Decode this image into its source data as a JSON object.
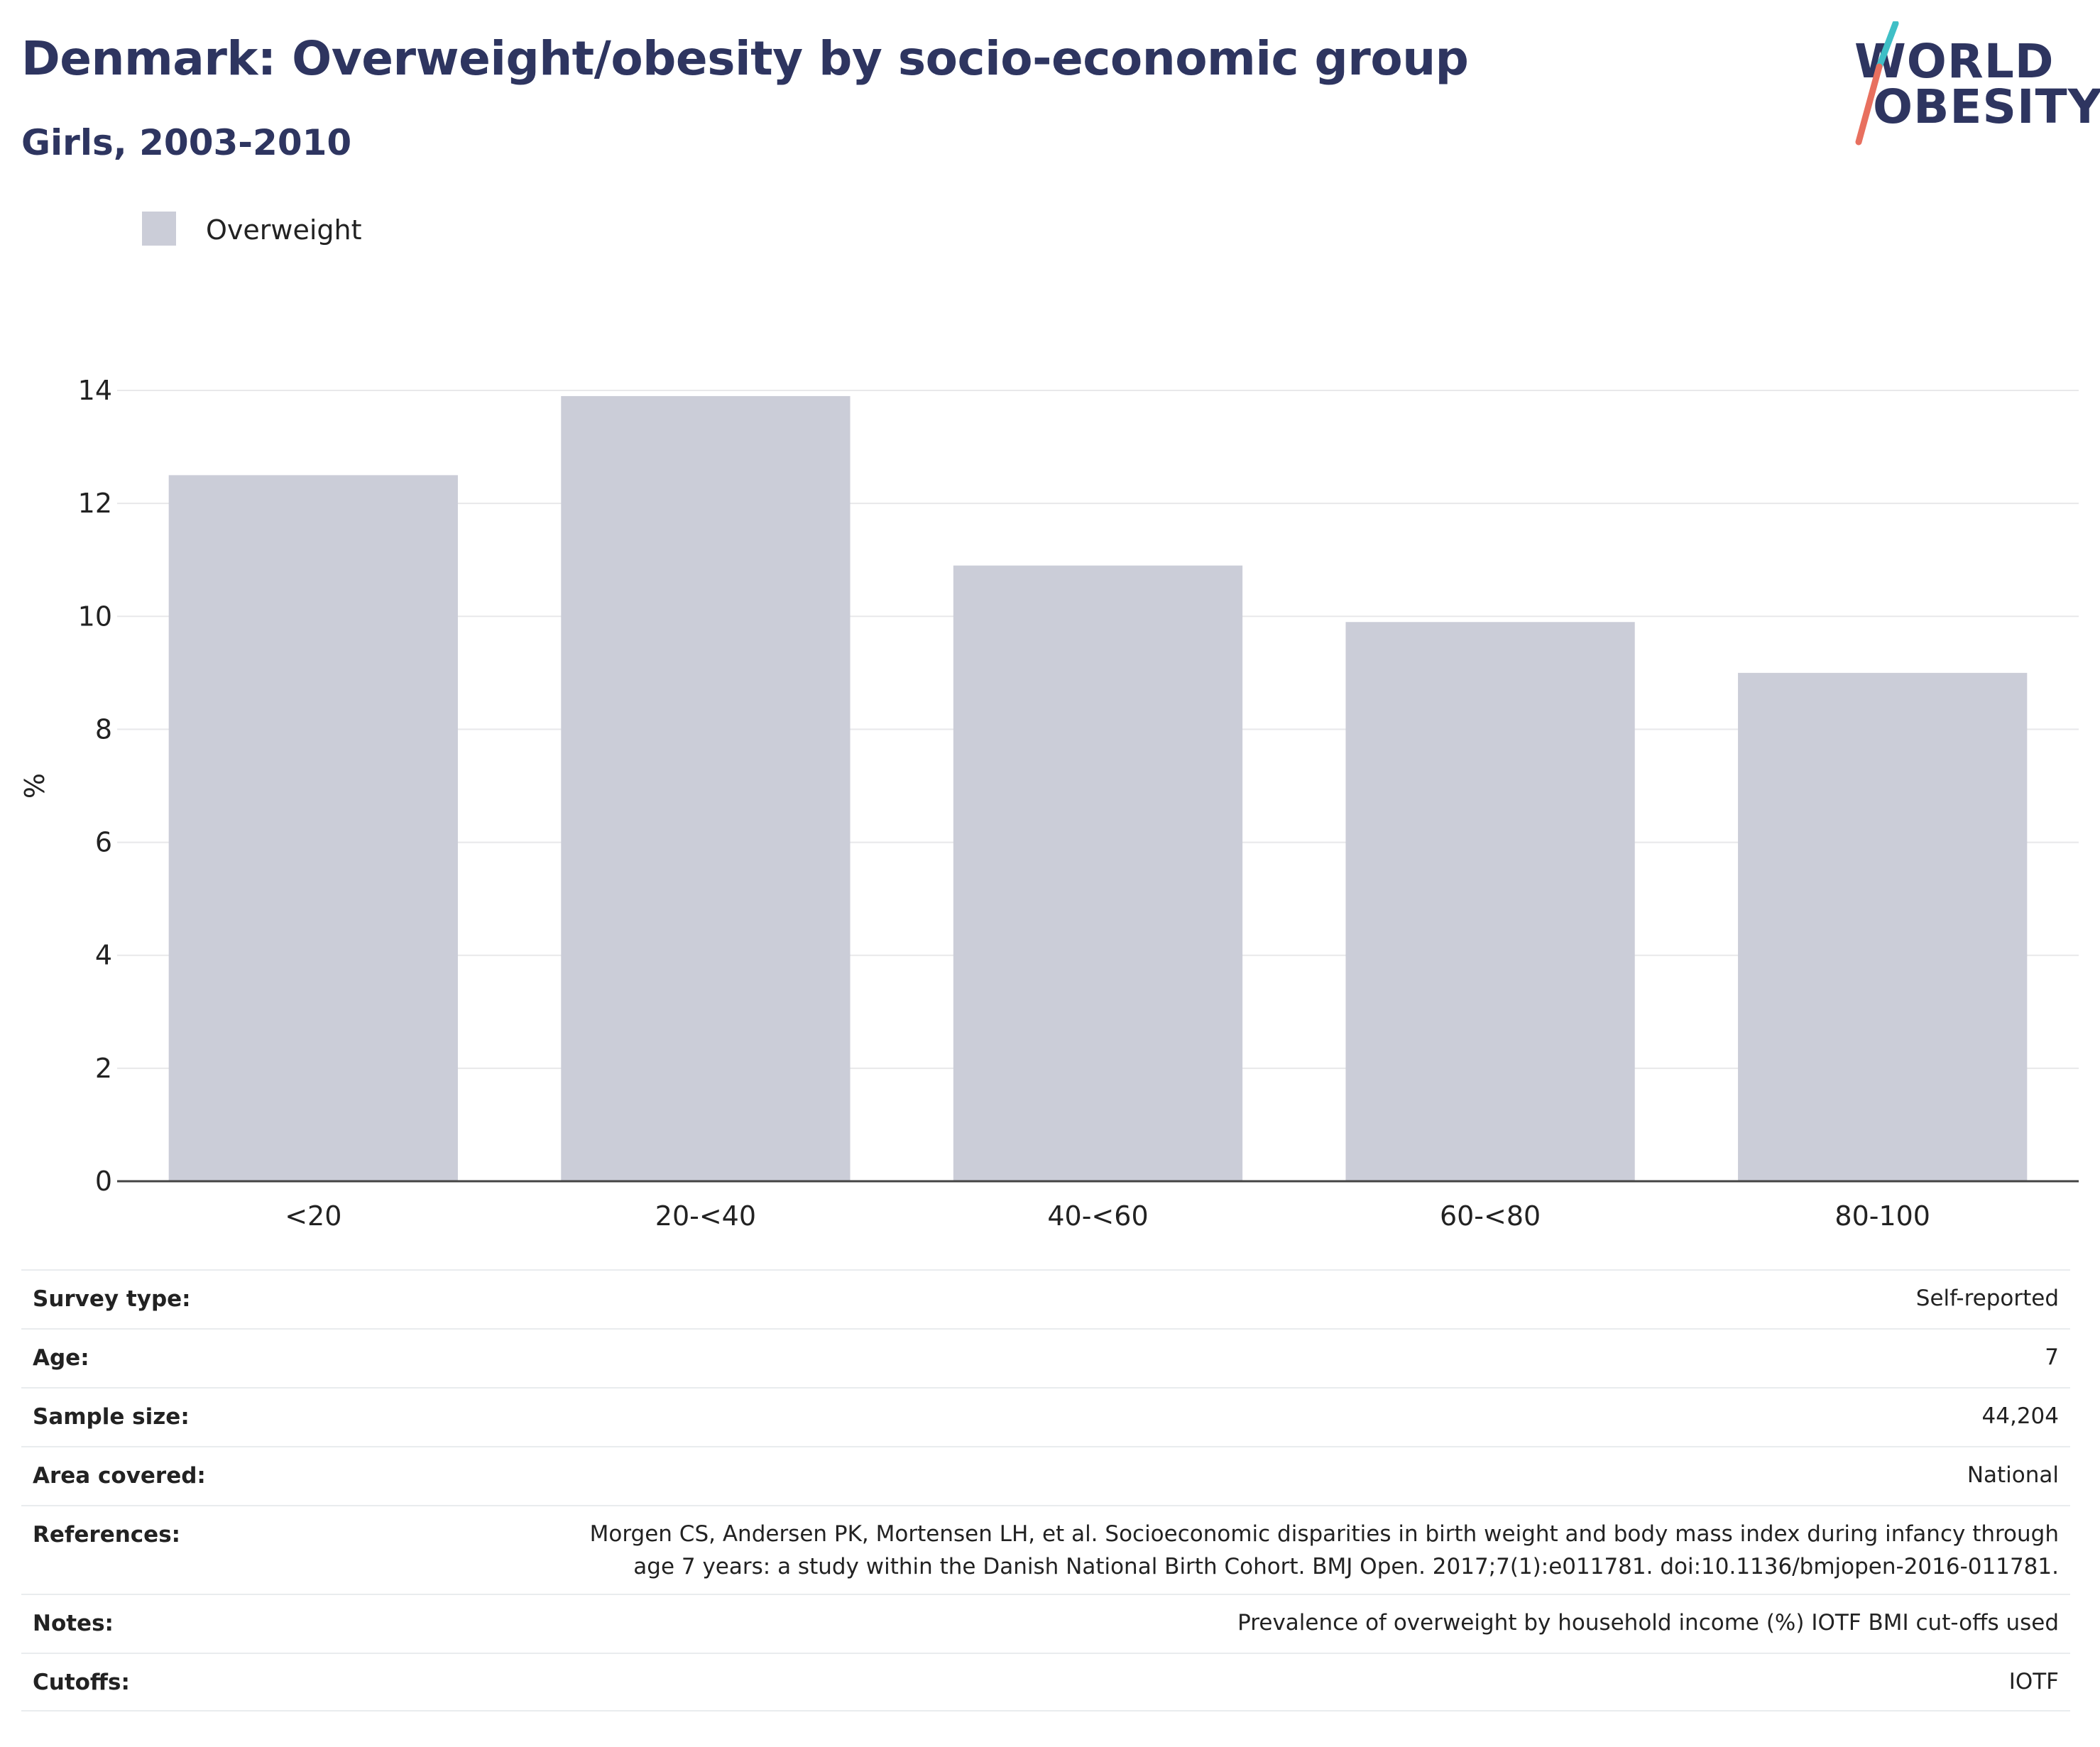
{
  "header": {
    "title": "Denmark: Overweight/obesity by socio-economic group",
    "subtitle": "Girls, 2003-2010"
  },
  "logo": {
    "line1": "WORLD",
    "line2": "OBESITY"
  },
  "colors": {
    "title": "#2e3560",
    "bar": "#cbcdd8",
    "logo_teal": "#3fbfc6",
    "logo_coral": "#e8705f"
  },
  "chart_data": {
    "type": "bar",
    "categories": [
      "<20",
      "20-<40",
      "40-<60",
      "60-<80",
      "80-100"
    ],
    "series": [
      {
        "name": "Overweight",
        "values": [
          12.5,
          13.9,
          10.9,
          9.9,
          9.0
        ]
      }
    ],
    "ylabel": "%",
    "xlabel": "",
    "ylim": [
      0,
      14
    ],
    "yticks": [
      0,
      2,
      4,
      6,
      8,
      10,
      12,
      14
    ],
    "grid": true,
    "legend": "top-left"
  },
  "info": [
    {
      "label": "Survey type:",
      "value": "Self-reported"
    },
    {
      "label": "Age:",
      "value": "7"
    },
    {
      "label": "Sample size:",
      "value": "44,204"
    },
    {
      "label": "Area covered:",
      "value": "National"
    },
    {
      "label": "References:",
      "value": "Morgen CS, Andersen PK, Mortensen LH, et al. Socioeconomic disparities in birth weight and body mass index during infancy through",
      "value2": "age 7 years: a study within the Danish National Birth Cohort. BMJ Open. 2017;7(1):e011781. doi:10.1136/bmjopen-2016-011781."
    },
    {
      "label": "Notes:",
      "value": "Prevalence of overweight by household income (%) IOTF BMI cut-offs used"
    },
    {
      "label": "Cutoffs:",
      "value": "IOTF"
    }
  ]
}
